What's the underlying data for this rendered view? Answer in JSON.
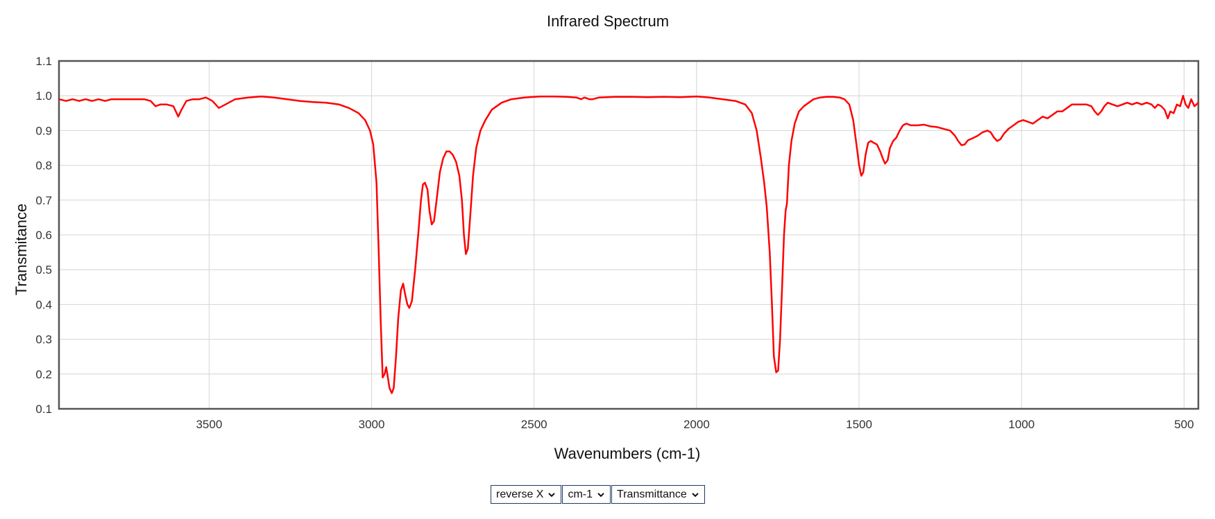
{
  "chart_data": {
    "type": "line",
    "title": "Infrared Spectrum",
    "xlabel": "Wavenumbers (cm-1)",
    "ylabel": "Transmitance",
    "xlim": [
      3962,
      456
    ],
    "ylim": [
      0.1,
      1.1
    ],
    "x_reversed": true,
    "xticks": [
      3500,
      3000,
      2500,
      2000,
      1500,
      1000,
      500
    ],
    "yticks": [
      0.1,
      0.2,
      0.3,
      0.4,
      0.5,
      0.6,
      0.7,
      0.8,
      0.9,
      1.0,
      1.1
    ],
    "grid": true,
    "series": [
      {
        "color": "#ff0000",
        "points": [
          [
            3962,
            0.99
          ],
          [
            3940,
            0.985
          ],
          [
            3920,
            0.99
          ],
          [
            3900,
            0.985
          ],
          [
            3880,
            0.99
          ],
          [
            3860,
            0.985
          ],
          [
            3840,
            0.99
          ],
          [
            3820,
            0.985
          ],
          [
            3800,
            0.99
          ],
          [
            3780,
            0.99
          ],
          [
            3760,
            0.99
          ],
          [
            3740,
            0.99
          ],
          [
            3720,
            0.99
          ],
          [
            3700,
            0.99
          ],
          [
            3680,
            0.985
          ],
          [
            3665,
            0.97
          ],
          [
            3650,
            0.975
          ],
          [
            3630,
            0.975
          ],
          [
            3610,
            0.97
          ],
          [
            3595,
            0.94
          ],
          [
            3585,
            0.96
          ],
          [
            3570,
            0.985
          ],
          [
            3550,
            0.99
          ],
          [
            3530,
            0.99
          ],
          [
            3510,
            0.995
          ],
          [
            3490,
            0.985
          ],
          [
            3470,
            0.965
          ],
          [
            3450,
            0.975
          ],
          [
            3420,
            0.99
          ],
          [
            3380,
            0.995
          ],
          [
            3340,
            0.998
          ],
          [
            3300,
            0.995
          ],
          [
            3260,
            0.99
          ],
          [
            3220,
            0.985
          ],
          [
            3180,
            0.982
          ],
          [
            3140,
            0.98
          ],
          [
            3100,
            0.975
          ],
          [
            3070,
            0.965
          ],
          [
            3040,
            0.95
          ],
          [
            3020,
            0.93
          ],
          [
            3005,
            0.9
          ],
          [
            2995,
            0.86
          ],
          [
            2985,
            0.75
          ],
          [
            2978,
            0.55
          ],
          [
            2972,
            0.35
          ],
          [
            2966,
            0.19
          ],
          [
            2960,
            0.2
          ],
          [
            2955,
            0.22
          ],
          [
            2950,
            0.19
          ],
          [
            2945,
            0.16
          ],
          [
            2938,
            0.145
          ],
          [
            2932,
            0.16
          ],
          [
            2925,
            0.25
          ],
          [
            2918,
            0.36
          ],
          [
            2910,
            0.44
          ],
          [
            2903,
            0.46
          ],
          [
            2897,
            0.43
          ],
          [
            2890,
            0.4
          ],
          [
            2884,
            0.39
          ],
          [
            2876,
            0.41
          ],
          [
            2866,
            0.5
          ],
          [
            2855,
            0.62
          ],
          [
            2848,
            0.7
          ],
          [
            2842,
            0.745
          ],
          [
            2836,
            0.75
          ],
          [
            2828,
            0.73
          ],
          [
            2822,
            0.67
          ],
          [
            2815,
            0.63
          ],
          [
            2808,
            0.64
          ],
          [
            2800,
            0.7
          ],
          [
            2790,
            0.78
          ],
          [
            2780,
            0.82
          ],
          [
            2770,
            0.84
          ],
          [
            2760,
            0.84
          ],
          [
            2750,
            0.83
          ],
          [
            2740,
            0.81
          ],
          [
            2730,
            0.77
          ],
          [
            2722,
            0.7
          ],
          [
            2716,
            0.6
          ],
          [
            2710,
            0.545
          ],
          [
            2704,
            0.56
          ],
          [
            2696,
            0.66
          ],
          [
            2688,
            0.77
          ],
          [
            2678,
            0.85
          ],
          [
            2665,
            0.9
          ],
          [
            2650,
            0.93
          ],
          [
            2630,
            0.96
          ],
          [
            2600,
            0.98
          ],
          [
            2570,
            0.99
          ],
          [
            2530,
            0.995
          ],
          [
            2480,
            0.998
          ],
          [
            2440,
            0.998
          ],
          [
            2400,
            0.997
          ],
          [
            2370,
            0.995
          ],
          [
            2355,
            0.99
          ],
          [
            2345,
            0.995
          ],
          [
            2330,
            0.99
          ],
          [
            2320,
            0.99
          ],
          [
            2300,
            0.995
          ],
          [
            2250,
            0.997
          ],
          [
            2200,
            0.997
          ],
          [
            2150,
            0.996
          ],
          [
            2100,
            0.997
          ],
          [
            2050,
            0.996
          ],
          [
            2000,
            0.998
          ],
          [
            1960,
            0.995
          ],
          [
            1920,
            0.99
          ],
          [
            1880,
            0.985
          ],
          [
            1850,
            0.975
          ],
          [
            1830,
            0.95
          ],
          [
            1815,
            0.9
          ],
          [
            1802,
            0.82
          ],
          [
            1792,
            0.75
          ],
          [
            1784,
            0.68
          ],
          [
            1775,
            0.55
          ],
          [
            1768,
            0.4
          ],
          [
            1762,
            0.25
          ],
          [
            1755,
            0.205
          ],
          [
            1749,
            0.21
          ],
          [
            1743,
            0.3
          ],
          [
            1737,
            0.45
          ],
          [
            1731,
            0.6
          ],
          [
            1726,
            0.67
          ],
          [
            1722,
            0.69
          ],
          [
            1716,
            0.8
          ],
          [
            1708,
            0.87
          ],
          [
            1698,
            0.92
          ],
          [
            1685,
            0.955
          ],
          [
            1670,
            0.97
          ],
          [
            1655,
            0.98
          ],
          [
            1640,
            0.99
          ],
          [
            1620,
            0.995
          ],
          [
            1600,
            0.997
          ],
          [
            1580,
            0.997
          ],
          [
            1560,
            0.995
          ],
          [
            1545,
            0.99
          ],
          [
            1530,
            0.975
          ],
          [
            1518,
            0.93
          ],
          [
            1508,
            0.86
          ],
          [
            1500,
            0.8
          ],
          [
            1493,
            0.77
          ],
          [
            1487,
            0.78
          ],
          [
            1480,
            0.83
          ],
          [
            1472,
            0.865
          ],
          [
            1464,
            0.87
          ],
          [
            1455,
            0.865
          ],
          [
            1445,
            0.86
          ],
          [
            1435,
            0.84
          ],
          [
            1427,
            0.82
          ],
          [
            1420,
            0.805
          ],
          [
            1412,
            0.815
          ],
          [
            1405,
            0.85
          ],
          [
            1395,
            0.87
          ],
          [
            1385,
            0.88
          ],
          [
            1375,
            0.9
          ],
          [
            1365,
            0.915
          ],
          [
            1355,
            0.92
          ],
          [
            1340,
            0.915
          ],
          [
            1320,
            0.915
          ],
          [
            1300,
            0.917
          ],
          [
            1280,
            0.912
          ],
          [
            1260,
            0.91
          ],
          [
            1240,
            0.905
          ],
          [
            1220,
            0.9
          ],
          [
            1205,
            0.885
          ],
          [
            1195,
            0.87
          ],
          [
            1185,
            0.858
          ],
          [
            1175,
            0.86
          ],
          [
            1165,
            0.872
          ],
          [
            1150,
            0.878
          ],
          [
            1135,
            0.885
          ],
          [
            1120,
            0.895
          ],
          [
            1105,
            0.9
          ],
          [
            1095,
            0.895
          ],
          [
            1085,
            0.88
          ],
          [
            1075,
            0.87
          ],
          [
            1065,
            0.875
          ],
          [
            1055,
            0.89
          ],
          [
            1040,
            0.905
          ],
          [
            1025,
            0.915
          ],
          [
            1010,
            0.925
          ],
          [
            995,
            0.93
          ],
          [
            980,
            0.925
          ],
          [
            965,
            0.92
          ],
          [
            950,
            0.93
          ],
          [
            935,
            0.94
          ],
          [
            920,
            0.935
          ],
          [
            905,
            0.945
          ],
          [
            890,
            0.955
          ],
          [
            875,
            0.955
          ],
          [
            860,
            0.965
          ],
          [
            845,
            0.975
          ],
          [
            830,
            0.975
          ],
          [
            815,
            0.975
          ],
          [
            800,
            0.975
          ],
          [
            785,
            0.97
          ],
          [
            775,
            0.955
          ],
          [
            765,
            0.945
          ],
          [
            755,
            0.955
          ],
          [
            745,
            0.97
          ],
          [
            735,
            0.98
          ],
          [
            720,
            0.975
          ],
          [
            705,
            0.97
          ],
          [
            690,
            0.975
          ],
          [
            675,
            0.98
          ],
          [
            660,
            0.975
          ],
          [
            645,
            0.98
          ],
          [
            630,
            0.975
          ],
          [
            615,
            0.98
          ],
          [
            600,
            0.975
          ],
          [
            590,
            0.965
          ],
          [
            580,
            0.975
          ],
          [
            570,
            0.97
          ],
          [
            560,
            0.96
          ],
          [
            550,
            0.935
          ],
          [
            542,
            0.955
          ],
          [
            532,
            0.95
          ],
          [
            522,
            0.975
          ],
          [
            512,
            0.97
          ],
          [
            503,
            1.0
          ],
          [
            495,
            0.975
          ],
          [
            487,
            0.965
          ],
          [
            478,
            0.99
          ],
          [
            468,
            0.97
          ],
          [
            456,
            0.98
          ]
        ]
      }
    ]
  },
  "controls": {
    "direction": "reverse X",
    "units": "cm-1",
    "mode": "Transmittance"
  }
}
